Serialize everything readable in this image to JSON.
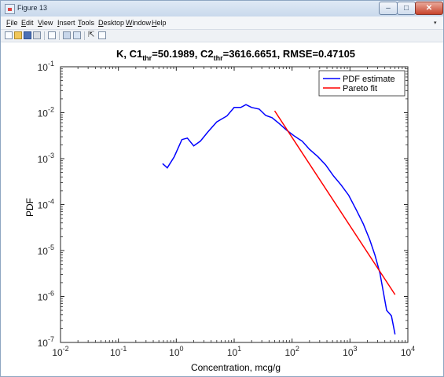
{
  "window": {
    "title": "Figure 13",
    "buttons": {
      "minimize_glyph": "–",
      "maximize_glyph": "□",
      "close_glyph": "✕"
    }
  },
  "menu": [
    "File",
    "Edit",
    "View",
    "Insert",
    "Tools",
    "Desktop",
    "Window",
    "Help"
  ],
  "toolbar": {
    "icons": [
      "new-figure-icon",
      "open-folder-icon",
      "save-icon",
      "print-icon",
      "print-preview-icon",
      "dock-icon",
      "legend-icon",
      "pointer-icon",
      "property-editor-icon"
    ]
  },
  "chart_data": {
    "type": "line",
    "title": {
      "prefix": "K, C1",
      "sub1": "thr",
      "mid": "=50.1989, C2",
      "sub2": "thr",
      "suffix": "=3616.6651, RMSE=0.47105"
    },
    "xlabel": "Concentration, mcg/g",
    "ylabel": "PDF",
    "xscale": "log",
    "yscale": "log",
    "xlim": [
      0.01,
      10000
    ],
    "ylim": [
      1e-07,
      0.1
    ],
    "x_ticks": [
      {
        "value": 0.01,
        "base": "10",
        "exp": "-2"
      },
      {
        "value": 0.1,
        "base": "10",
        "exp": "-1"
      },
      {
        "value": 1,
        "base": "10",
        "exp": "0"
      },
      {
        "value": 10,
        "base": "10",
        "exp": "1"
      },
      {
        "value": 100,
        "base": "10",
        "exp": "2"
      },
      {
        "value": 1000,
        "base": "10",
        "exp": "3"
      },
      {
        "value": 10000,
        "base": "10",
        "exp": "4"
      }
    ],
    "y_ticks": [
      {
        "value": 1e-07,
        "base": "10",
        "exp": "-7"
      },
      {
        "value": 1e-06,
        "base": "10",
        "exp": "-6"
      },
      {
        "value": 1e-05,
        "base": "10",
        "exp": "-5"
      },
      {
        "value": 0.0001,
        "base": "10",
        "exp": "-4"
      },
      {
        "value": 0.001,
        "base": "10",
        "exp": "-3"
      },
      {
        "value": 0.01,
        "base": "10",
        "exp": "-2"
      },
      {
        "value": 0.1,
        "base": "10",
        "exp": "-1"
      }
    ],
    "grid": false,
    "legend_position": "top-right",
    "series": [
      {
        "name": "PDF estimate",
        "color": "#0000ff",
        "points": [
          [
            0.58,
            0.00078
          ],
          [
            0.7,
            0.00063
          ],
          [
            0.92,
            0.0011
          ],
          [
            1.25,
            0.0026
          ],
          [
            1.55,
            0.0028
          ],
          [
            2.0,
            0.0019
          ],
          [
            2.6,
            0.0024
          ],
          [
            3.5,
            0.0038
          ],
          [
            5.0,
            0.0063
          ],
          [
            7.5,
            0.0085
          ],
          [
            10.0,
            0.013
          ],
          [
            13.0,
            0.013
          ],
          [
            16.0,
            0.015
          ],
          [
            20.0,
            0.013
          ],
          [
            27.0,
            0.012
          ],
          [
            35.0,
            0.0087
          ],
          [
            45.0,
            0.0078
          ],
          [
            60.0,
            0.0058
          ],
          [
            80.0,
            0.0042
          ],
          [
            110.0,
            0.0031
          ],
          [
            150.0,
            0.0024
          ],
          [
            200.0,
            0.0016
          ],
          [
            280.0,
            0.0011
          ],
          [
            380.0,
            0.00073
          ],
          [
            520.0,
            0.00042
          ],
          [
            700.0,
            0.00027
          ],
          [
            950.0,
            0.00016
          ],
          [
            1300.0,
            7.5e-05
          ],
          [
            1700.0,
            3.8e-05
          ],
          [
            2200.0,
            1.7e-05
          ],
          [
            2700.0,
            8e-06
          ],
          [
            3300.0,
            3.2e-06
          ],
          [
            3800.0,
            1.2e-06
          ],
          [
            4300.0,
            5e-07
          ],
          [
            5200.0,
            3.8e-07
          ],
          [
            6000.0,
            1.5e-07
          ]
        ]
      },
      {
        "name": "Pareto fit",
        "color": "#ff0000",
        "points": [
          [
            50.0,
            0.011
          ],
          [
            6000.0,
            1.1e-06
          ]
        ]
      }
    ]
  }
}
